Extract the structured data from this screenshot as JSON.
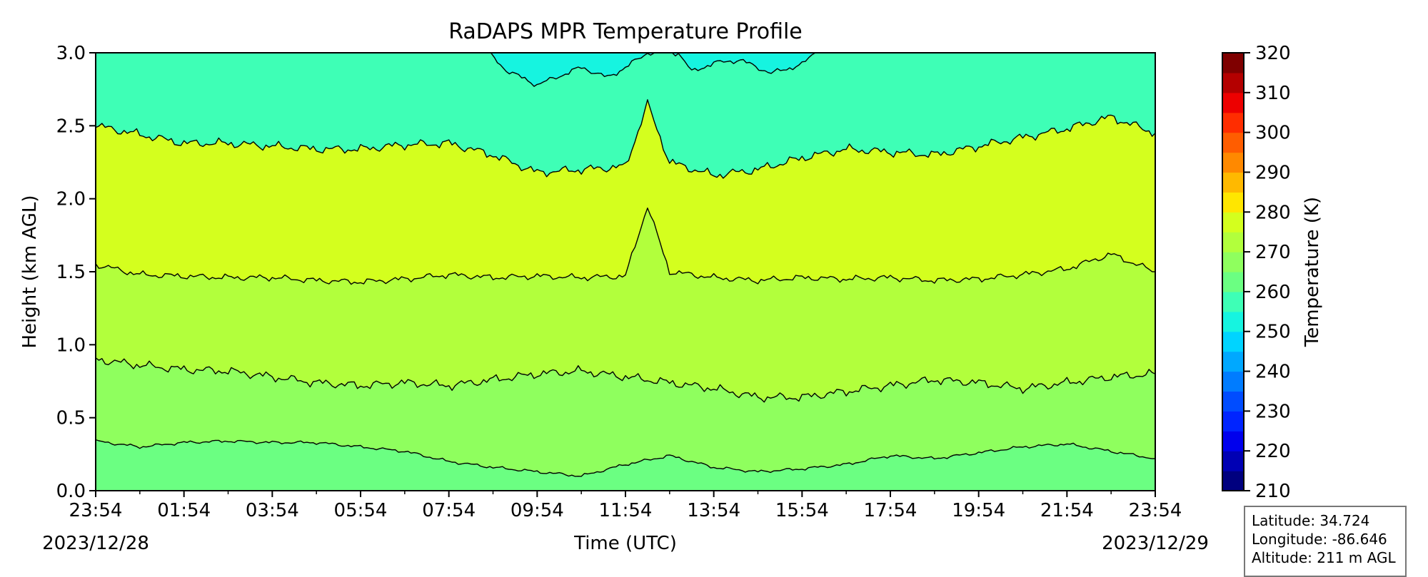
{
  "chart_data": {
    "type": "contour",
    "title": "RaDAPS MPR Temperature Profile",
    "xlabel": "Time (UTC)",
    "ylabel": "Height (km AGL)",
    "x_tick_labels": [
      "23:54",
      "01:54",
      "03:54",
      "05:54",
      "07:54",
      "09:54",
      "11:54",
      "13:54",
      "15:54",
      "17:54",
      "19:54",
      "21:54",
      "23:54"
    ],
    "x_hours": [
      0,
      2,
      4,
      6,
      8,
      10,
      12,
      14,
      16,
      18,
      20,
      22,
      24
    ],
    "start_date": "2023/12/28",
    "end_date": "2023/12/29",
    "xlim_hours": [
      0,
      24
    ],
    "ylim": [
      0,
      3.0
    ],
    "y_ticks": [
      0.0,
      0.5,
      1.0,
      1.5,
      2.0,
      2.5,
      3.0
    ],
    "y_tick_labels": [
      "0.0",
      "0.5",
      "1.0",
      "1.5",
      "2.0",
      "2.5",
      "3.0"
    ],
    "contour_levels_K": [
      275,
      270,
      265,
      260,
      255
    ],
    "contour_lines": [
      {
        "level": 275,
        "points": [
          [
            0,
            0.34
          ],
          [
            1,
            0.3
          ],
          [
            2,
            0.33
          ],
          [
            3,
            0.34
          ],
          [
            4,
            0.33
          ],
          [
            5,
            0.33
          ],
          [
            6,
            0.3
          ],
          [
            7,
            0.27
          ],
          [
            8,
            0.2
          ],
          [
            9,
            0.16
          ],
          [
            10,
            0.13
          ],
          [
            11,
            0.1
          ],
          [
            12,
            0.18
          ],
          [
            13,
            0.24
          ],
          [
            14,
            0.16
          ],
          [
            15,
            0.13
          ],
          [
            16,
            0.15
          ],
          [
            17,
            0.18
          ],
          [
            18,
            0.24
          ],
          [
            19,
            0.22
          ],
          [
            20,
            0.26
          ],
          [
            21,
            0.3
          ],
          [
            22,
            0.32
          ],
          [
            23,
            0.27
          ],
          [
            24,
            0.22
          ]
        ]
      },
      {
        "level": 270,
        "points": [
          [
            0,
            0.9
          ],
          [
            1,
            0.86
          ],
          [
            2,
            0.83
          ],
          [
            3,
            0.82
          ],
          [
            4,
            0.78
          ],
          [
            5,
            0.74
          ],
          [
            6,
            0.72
          ],
          [
            7,
            0.74
          ],
          [
            8,
            0.72
          ],
          [
            9,
            0.76
          ],
          [
            10,
            0.8
          ],
          [
            11,
            0.82
          ],
          [
            12,
            0.78
          ],
          [
            13,
            0.74
          ],
          [
            14,
            0.7
          ],
          [
            15,
            0.64
          ],
          [
            16,
            0.64
          ],
          [
            17,
            0.68
          ],
          [
            18,
            0.72
          ],
          [
            19,
            0.76
          ],
          [
            20,
            0.74
          ],
          [
            21,
            0.7
          ],
          [
            22,
            0.74
          ],
          [
            23,
            0.78
          ],
          [
            24,
            0.8
          ]
        ]
      },
      {
        "level": 265,
        "points": [
          [
            0,
            1.55
          ],
          [
            1,
            1.48
          ],
          [
            2,
            1.47
          ],
          [
            3,
            1.46
          ],
          [
            4,
            1.46
          ],
          [
            5,
            1.44
          ],
          [
            6,
            1.43
          ],
          [
            7,
            1.45
          ],
          [
            8,
            1.48
          ],
          [
            9,
            1.46
          ],
          [
            10,
            1.47
          ],
          [
            11,
            1.46
          ],
          [
            12,
            1.47
          ],
          [
            12.5,
            1.95
          ],
          [
            13,
            1.5
          ],
          [
            14,
            1.46
          ],
          [
            15,
            1.44
          ],
          [
            16,
            1.46
          ],
          [
            17,
            1.45
          ],
          [
            18,
            1.46
          ],
          [
            19,
            1.44
          ],
          [
            20,
            1.45
          ],
          [
            21,
            1.48
          ],
          [
            22,
            1.52
          ],
          [
            23,
            1.62
          ],
          [
            24,
            1.5
          ]
        ]
      },
      {
        "level": 260,
        "points": [
          [
            0,
            2.5
          ],
          [
            1,
            2.44
          ],
          [
            2,
            2.38
          ],
          [
            3,
            2.38
          ],
          [
            4,
            2.36
          ],
          [
            5,
            2.34
          ],
          [
            6,
            2.34
          ],
          [
            7,
            2.37
          ],
          [
            8,
            2.38
          ],
          [
            9,
            2.3
          ],
          [
            10,
            2.18
          ],
          [
            11,
            2.2
          ],
          [
            12,
            2.22
          ],
          [
            12.5,
            2.65
          ],
          [
            13,
            2.25
          ],
          [
            14,
            2.16
          ],
          [
            15,
            2.2
          ],
          [
            16,
            2.28
          ],
          [
            17,
            2.34
          ],
          [
            18,
            2.32
          ],
          [
            19,
            2.3
          ],
          [
            20,
            2.36
          ],
          [
            21,
            2.42
          ],
          [
            22,
            2.48
          ],
          [
            23,
            2.56
          ],
          [
            24,
            2.45
          ]
        ]
      },
      {
        "level": 255,
        "points": [
          [
            8.9,
            3.0
          ],
          [
            9.3,
            2.88
          ],
          [
            10,
            2.78
          ],
          [
            10.5,
            2.84
          ],
          [
            11,
            2.9
          ],
          [
            11.6,
            2.83
          ],
          [
            12,
            2.9
          ],
          [
            12.5,
            3.0
          ],
          [
            13.2,
            3.0
          ],
          [
            13.5,
            2.87
          ],
          [
            14,
            2.93
          ],
          [
            14.6,
            2.95
          ],
          [
            15.3,
            2.86
          ],
          [
            16,
            2.92
          ],
          [
            16.3,
            3.0
          ]
        ]
      }
    ],
    "fill_colors": [
      "#d4ff1e",
      "#b2ff3c",
      "#8fff5e",
      "#6bff82",
      "#3effb6",
      "#16f4e0"
    ],
    "colorbar": {
      "label": "Temperature (K)",
      "ticks": [
        210,
        220,
        230,
        240,
        250,
        260,
        270,
        280,
        290,
        300,
        310,
        320
      ],
      "colors": [
        "#00007f",
        "#0000b4",
        "#0000ed",
        "#0024ff",
        "#004cff",
        "#007cff",
        "#00a8ff",
        "#00d4ff",
        "#16f4e0",
        "#3effb6",
        "#6bff82",
        "#8fff5e",
        "#b2ff3c",
        "#d4ff1e",
        "#ffe600",
        "#ffb900",
        "#ff8900",
        "#ff5d00",
        "#ff2d00",
        "#ed0000",
        "#b40000",
        "#7f0000"
      ]
    }
  },
  "info": {
    "latitude": "Latitude: 34.724",
    "longitude": "Longitude: -86.646",
    "altitude": "Altitude: 211 m AGL"
  }
}
